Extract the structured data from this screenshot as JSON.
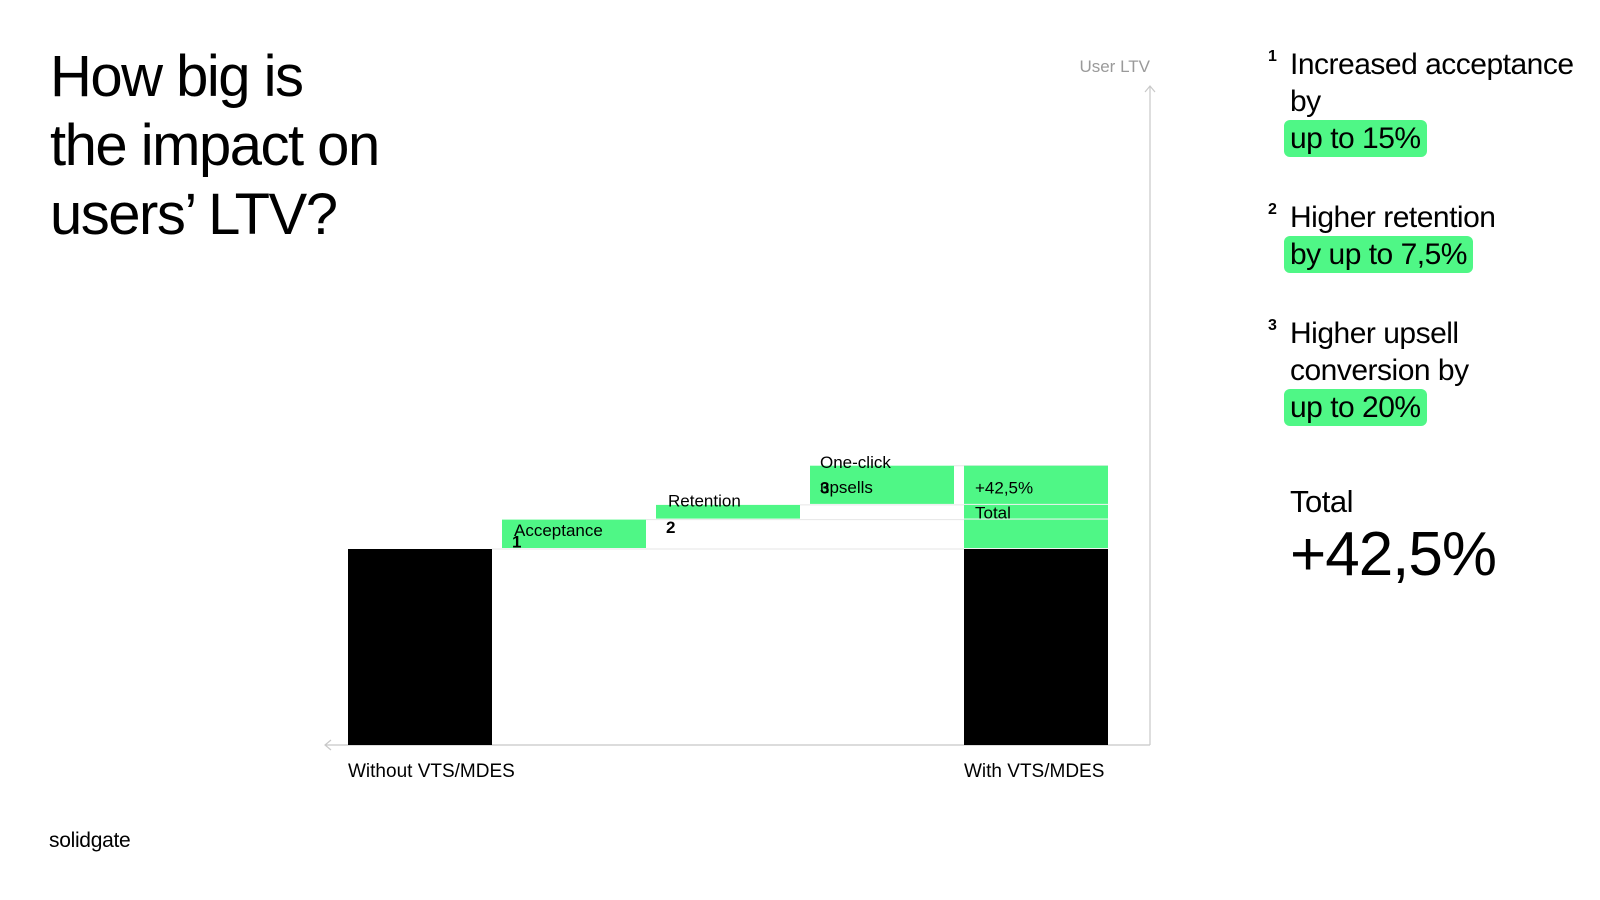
{
  "title": "How big is\nthe impact on\nusers’ LTV?",
  "brand": "solidgate",
  "colors": {
    "accent": "#4ff786",
    "base": "#000000",
    "axis": "#c8c8c8"
  },
  "chart_data": {
    "type": "bar",
    "subtype": "waterfall",
    "ylabel": "User LTV",
    "categories": [
      "Without VTS/MDES",
      "Acceptance",
      "Retention",
      "One-click upsells",
      "With VTS/MDES"
    ],
    "base_value": 100,
    "steps": [
      {
        "num": "1",
        "label": "Acceptance",
        "value": 15
      },
      {
        "num": "2",
        "label": "Retention",
        "value": 7.5
      },
      {
        "num": "3",
        "label": "One-click upsells",
        "value": 20
      }
    ],
    "total_label": "+42,5%\nTotal",
    "total_increase": 42.5,
    "x_labels": {
      "left": "Without VTS/MDES",
      "right": "With VTS/MDES"
    }
  },
  "notes": [
    {
      "num": "1",
      "text": "Increased acceptance by",
      "highlight": "up to 15%"
    },
    {
      "num": "2",
      "text": "Higher retention",
      "highlight": "by up to 7,5%"
    },
    {
      "num": "3",
      "text": "Higher upsell conversion by",
      "highlight": "up to 20%"
    }
  ],
  "total": {
    "label": "Total",
    "value": "+42,5%"
  }
}
